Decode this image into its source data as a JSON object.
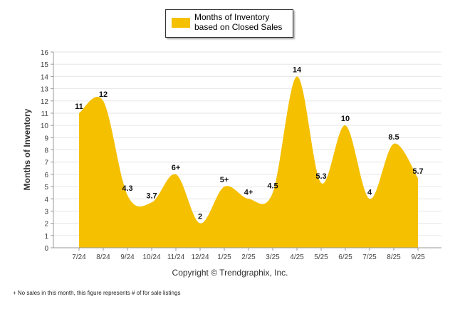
{
  "chart_data": {
    "type": "area",
    "title": "",
    "legend": {
      "label": "Months of Inventory based on Closed Sales",
      "position": "top-center"
    },
    "ylabel": "Months of Inventory",
    "xlabel": "",
    "ylim": [
      0,
      16
    ],
    "ytick_step": 1,
    "grid": true,
    "categories": [
      "7/24",
      "8/24",
      "9/24",
      "10/24",
      "11/24",
      "12/24",
      "1/25",
      "2/25",
      "3/25",
      "4/25",
      "5/25",
      "6/25",
      "7/25",
      "8/25",
      "9/25"
    ],
    "values": [
      11,
      12,
      4.3,
      3.7,
      6,
      2,
      5,
      4,
      4.5,
      14,
      5.3,
      10,
      4,
      8.5,
      5.7
    ],
    "data_labels": [
      "11",
      "12",
      "4.3",
      "3.7",
      "6+",
      "2",
      "5+",
      "4+",
      "4.5",
      "14",
      "5.3",
      "10",
      "4",
      "8.5",
      "5.7"
    ],
    "fill_color": "#f5c000"
  },
  "copyright": "Copyright © Trendgraphix, Inc.",
  "footnote": "+ No sales in this month, this figure represents # of for sale listings"
}
